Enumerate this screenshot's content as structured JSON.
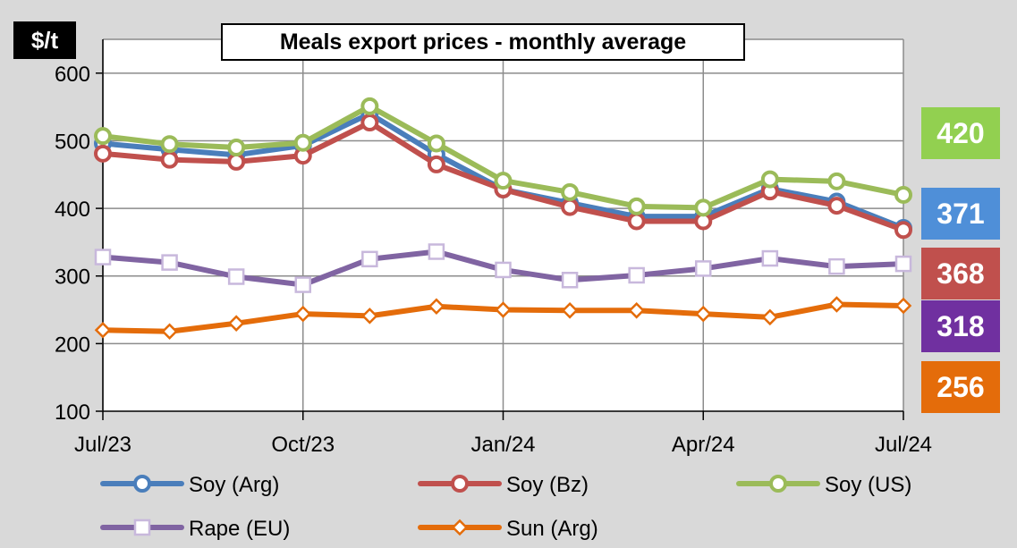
{
  "chart_data": {
    "type": "line",
    "title": "Meals export prices - monthly average",
    "ylabel": "$/t",
    "xlabel": "",
    "ylim": [
      100,
      650
    ],
    "y_ticks": [
      100,
      200,
      300,
      400,
      500,
      600
    ],
    "x": [
      "Jul/23",
      "Aug/23",
      "Sep/23",
      "Oct/23",
      "Nov/23",
      "Dec/23",
      "Jan/24",
      "Feb/24",
      "Mar/24",
      "Apr/24",
      "May/24",
      "Jun/24",
      "Jul/24"
    ],
    "x_tick_labels": [
      {
        "index": 0,
        "label": "Jul/23"
      },
      {
        "index": 3,
        "label": "Oct/23"
      },
      {
        "index": 6,
        "label": "Jan/24"
      },
      {
        "index": 9,
        "label": "Apr/24"
      },
      {
        "index": 12,
        "label": "Jul/24"
      }
    ],
    "grid": true,
    "legend_position": "bottom",
    "series": [
      {
        "name": "Soy (Arg)",
        "color": "#4a7ebb",
        "marker": "circle",
        "values": [
          496,
          487,
          479,
          493,
          540,
          480,
          428,
          408,
          388,
          388,
          429,
          410,
          371
        ]
      },
      {
        "name": "Soy (Bz)",
        "color": "#c0504d",
        "marker": "circle",
        "values": [
          481,
          472,
          469,
          478,
          527,
          465,
          428,
          402,
          381,
          381,
          425,
          404,
          368
        ]
      },
      {
        "name": "Soy (US)",
        "color": "#9bbb59",
        "marker": "circle",
        "values": [
          507,
          495,
          490,
          497,
          551,
          496,
          441,
          424,
          403,
          401,
          443,
          440,
          420
        ]
      },
      {
        "name": "Rape (EU)",
        "color": "#8064a2",
        "marker": "square",
        "values": [
          328,
          320,
          299,
          287,
          325,
          336,
          309,
          294,
          301,
          311,
          326,
          314,
          318
        ]
      },
      {
        "name": "Sun (Arg)",
        "color": "#e46c0a",
        "marker": "diamond",
        "values": [
          220,
          218,
          230,
          244,
          241,
          255,
          250,
          249,
          249,
          244,
          239,
          258,
          256
        ]
      }
    ],
    "end_labels": [
      {
        "value": "420",
        "color": "#92d050"
      },
      {
        "value": "371",
        "color": "#4f8fd8"
      },
      {
        "value": "368",
        "color": "#c0504d"
      },
      {
        "value": "318",
        "color": "#7030a0"
      },
      {
        "value": "256",
        "color": "#e46c0a"
      }
    ]
  }
}
